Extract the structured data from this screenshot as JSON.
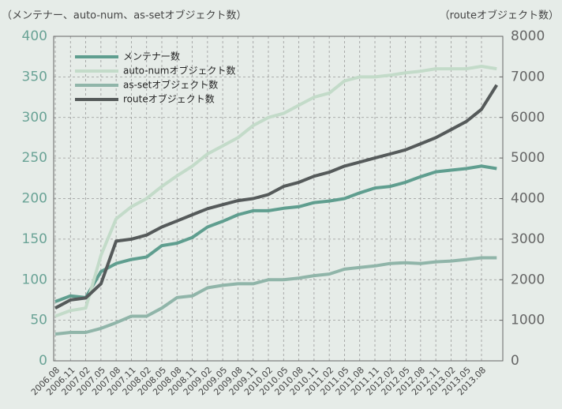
{
  "chart_data": {
    "type": "line",
    "y_axis_label": "（メンテナー、auto-num、as-setオブジェクト数）",
    "y2_axis_label": "（routeオブジェクト数）",
    "categories": [
      "2006.08",
      "2006.11",
      "2007.02",
      "2007.05",
      "2007.08",
      "2007.11",
      "2008.02",
      "2008.05",
      "2008.08",
      "2008.11",
      "2009.02",
      "2009.05",
      "2009.08",
      "2009.11",
      "2010.02",
      "2010.05",
      "2010.08",
      "2010.11",
      "2011.02",
      "2011.05",
      "2011.08",
      "2011.11",
      "2012.02",
      "2012.05",
      "2012.08",
      "2012.11",
      "2013.02",
      "2013.05",
      "2013.08",
      null
    ],
    "series": [
      {
        "name": "メンテナー数",
        "color": "#5f9e8f",
        "values": [
          73,
          80,
          78,
          110,
          120,
          125,
          128,
          142,
          145,
          152,
          165,
          172,
          180,
          185,
          185,
          188,
          190,
          195,
          197,
          200,
          207,
          213,
          215,
          220,
          227,
          233,
          235,
          237,
          240,
          237
        ]
      },
      {
        "name": "auto-numオブジェクト数",
        "color": "#c3dbc9",
        "values": [
          55,
          62,
          65,
          130,
          175,
          190,
          200,
          215,
          228,
          240,
          255,
          265,
          275,
          290,
          300,
          305,
          315,
          325,
          330,
          345,
          350,
          350,
          352,
          355,
          357,
          360,
          360,
          360,
          363,
          360
        ]
      },
      {
        "name": "as-setオブジェクト数",
        "color": "#90b5a9",
        "values": [
          33,
          35,
          35,
          40,
          47,
          55,
          55,
          65,
          78,
          80,
          90,
          93,
          95,
          95,
          100,
          100,
          102,
          105,
          107,
          113,
          115,
          117,
          120,
          121,
          120,
          122,
          123,
          125,
          127,
          127
        ]
      },
      {
        "name": "routeオブジェクト数",
        "color": "#555a5a",
        "axis": "y2",
        "values": [
          1300,
          1500,
          1550,
          1900,
          2950,
          3000,
          3100,
          3300,
          3450,
          3600,
          3750,
          3850,
          3950,
          4000,
          4100,
          4300,
          4400,
          4550,
          4650,
          4800,
          4900,
          5000,
          5100,
          5200,
          5350,
          5500,
          5700,
          5900,
          6200,
          6800
        ]
      }
    ],
    "ylim": [
      0,
      400
    ],
    "yticks": [
      0,
      50,
      100,
      150,
      200,
      250,
      300,
      350,
      400
    ],
    "y2lim": [
      0,
      8000
    ],
    "y2ticks": [
      0,
      1000,
      2000,
      3000,
      4000,
      5000,
      6000,
      7000,
      8000
    ],
    "grid": true,
    "legend": "upper left"
  }
}
